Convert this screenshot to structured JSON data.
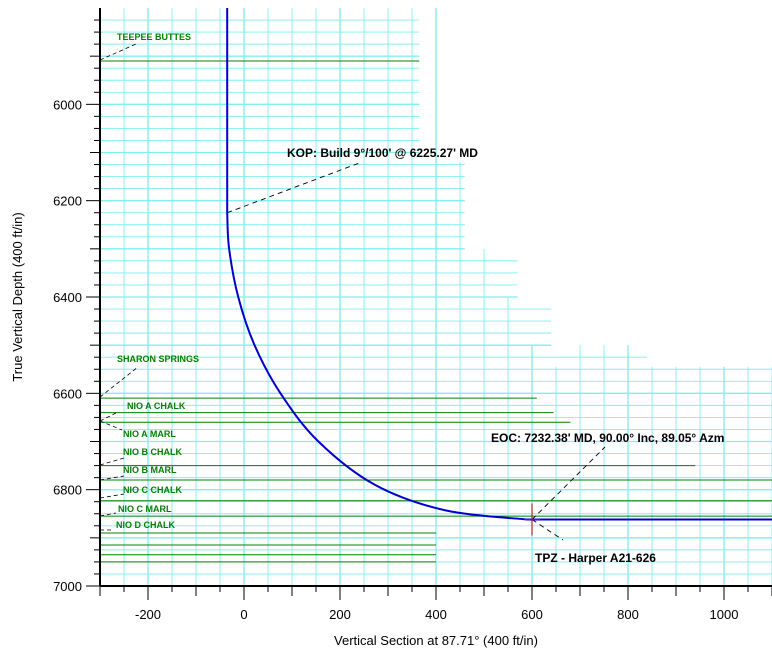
{
  "chart_data": {
    "type": "line",
    "xlabel": "Vertical Section at 87.71° (400 ft/in)",
    "ylabel": "True Vertical Depth (400 ft/in)",
    "xlim": [
      -300,
      1100
    ],
    "ylim": [
      5800,
      7000
    ],
    "y_inverted": true,
    "x_ticks": [
      -200,
      0,
      200,
      400,
      600,
      800,
      1000
    ],
    "y_ticks": [
      6000,
      6200,
      6400,
      6600,
      6800,
      7000
    ],
    "grid": true,
    "colors": {
      "wellpath": "#0000cc",
      "grid": "#7fefef",
      "formation": "#008000",
      "target": "#cc0000"
    },
    "series": [
      {
        "values": [
          [
            -35,
            5800
          ],
          [
            -35,
            6000
          ],
          [
            -35,
            6225
          ],
          [
            -31,
            6300
          ],
          [
            -12,
            6400
          ],
          [
            22,
            6500
          ],
          [
            76,
            6600
          ],
          [
            155,
            6700
          ],
          [
            273,
            6790
          ],
          [
            420,
            6843
          ],
          [
            590,
            6862
          ],
          [
            1100,
            6862
          ]
        ]
      }
    ],
    "formations": [
      {
        "name": "TEEPEE BUTTES",
        "tvd": 5910,
        "x_end": 365
      },
      {
        "name": "SHARON SPRINGS",
        "tvd": 6610,
        "x_end": 610
      },
      {
        "name": "NIO A CHALK",
        "tvd": 6640,
        "x_end": 645
      },
      {
        "name": "NIO A MARL",
        "tvd": 6660,
        "x_end": 680
      },
      {
        "name": "NIO B CHALK",
        "tvd": 6750,
        "x_end": 940
      },
      {
        "name": "NIO B MARL",
        "tvd": 6780,
        "x_end": 1100
      },
      {
        "name": "NIO C CHALK",
        "tvd": 6823,
        "x_end": 1100
      },
      {
        "name": "NIO C MARL",
        "tvd": 6855,
        "x_end": 1100
      },
      {
        "name": "NIO D CHALK",
        "tvd": 6890,
        "x_end": 400
      }
    ],
    "extra_lines": [
      {
        "tvd": 6915,
        "x_end": 400
      },
      {
        "tvd": 6935,
        "x_end": 400
      },
      {
        "tvd": 6950,
        "x_end": 400
      }
    ],
    "annotations": [
      {
        "text": "KOP: Build 9°/100' @ 6225.27' MD",
        "point": [
          -35,
          6225
        ]
      },
      {
        "text": "EOC: 7232.38' MD, 90.00° Inc, 89.05° Azm",
        "point": [
          600,
          6862
        ]
      },
      {
        "text": "TPZ - Harper A21-626",
        "point": [
          600,
          6862
        ]
      }
    ]
  }
}
